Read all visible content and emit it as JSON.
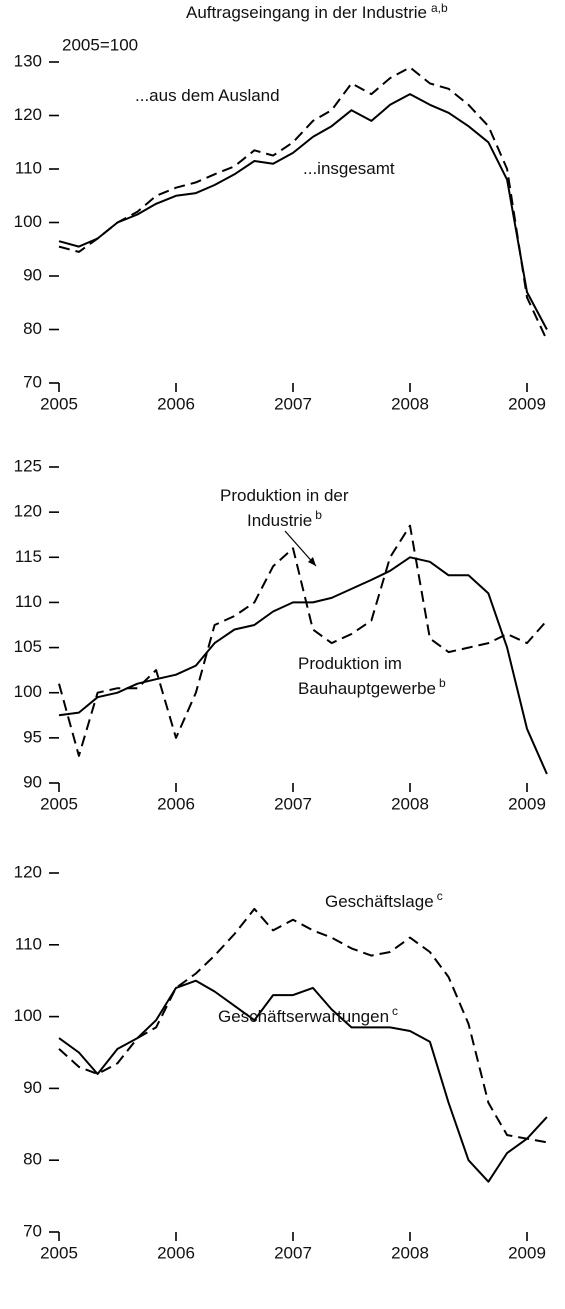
{
  "chart_data": [
    {
      "type": "line",
      "title": "Auftragseingang in der Industrie",
      "title_sup": "a,b",
      "subtitle": "2005=100",
      "x": [
        2005,
        2005.17,
        2005.33,
        2005.5,
        2005.67,
        2005.83,
        2006,
        2006.17,
        2006.33,
        2006.5,
        2006.67,
        2006.83,
        2007,
        2007.17,
        2007.33,
        2007.5,
        2007.67,
        2007.83,
        2008,
        2008.17,
        2008.33,
        2008.5,
        2008.67,
        2008.83,
        2009,
        2009.17
      ],
      "xlim": [
        2005,
        2009.3
      ],
      "xticks": [
        2005,
        2006,
        2007,
        2008,
        2009
      ],
      "ylim": [
        70,
        130
      ],
      "yticks": [
        70,
        80,
        90,
        100,
        110,
        120,
        130
      ],
      "series": [
        {
          "color": "#000000",
          "dash": false,
          "values": [
            96.5,
            95.5,
            97,
            100,
            101.5,
            103.5,
            105,
            105.5,
            107,
            109,
            111.5,
            111,
            113,
            116,
            118,
            121,
            119,
            122,
            124,
            122,
            120.5,
            118,
            115,
            108,
            87,
            80
          ]
        },
        {
          "color": "#000000",
          "dash": true,
          "values": [
            95.5,
            94.5,
            97,
            100,
            102,
            105,
            106.5,
            107.5,
            109,
            110.5,
            113.5,
            112.5,
            115,
            119,
            121,
            126,
            124,
            127,
            129,
            126,
            125,
            122,
            118,
            110,
            86,
            78
          ]
        }
      ],
      "annotations": [
        {
          "lines": [
            {
              "text": "...aus dem Ausland"
            }
          ]
        },
        {
          "lines": [
            {
              "text": "...insgesamt"
            }
          ]
        }
      ]
    },
    {
      "type": "line",
      "x": [
        2005,
        2005.17,
        2005.33,
        2005.5,
        2005.67,
        2005.83,
        2006,
        2006.17,
        2006.33,
        2006.5,
        2006.67,
        2006.83,
        2007,
        2007.17,
        2007.33,
        2007.5,
        2007.67,
        2007.83,
        2008,
        2008.17,
        2008.33,
        2008.5,
        2008.67,
        2008.83,
        2009,
        2009.17
      ],
      "xlim": [
        2005,
        2009.3
      ],
      "xticks": [
        2005,
        2006,
        2007,
        2008,
        2009
      ],
      "ylim": [
        90,
        125
      ],
      "yticks": [
        90,
        95,
        100,
        105,
        110,
        115,
        120,
        125
      ],
      "series": [
        {
          "color": "#000000",
          "dash": false,
          "values": [
            97.5,
            97.8,
            99.5,
            100,
            101,
            101.5,
            102,
            103,
            105.5,
            107,
            107.5,
            109,
            110,
            110,
            110.5,
            111.5,
            112.5,
            113.5,
            115,
            114.5,
            113,
            113,
            111,
            105,
            96,
            91
          ]
        },
        {
          "color": "#000000",
          "dash": true,
          "values": [
            101,
            93,
            100,
            100.5,
            100.5,
            102.5,
            95,
            100,
            107.5,
            108.5,
            110,
            114,
            116,
            107,
            105.5,
            106.5,
            108,
            115,
            118.5,
            106,
            104.5,
            105,
            105.5,
            106.5,
            105.5,
            108
          ]
        }
      ],
      "annotations": [
        {
          "lines": [
            {
              "text": "Produktion in der"
            },
            {
              "text": "Industrie",
              "sup": "b"
            }
          ]
        },
        {
          "lines": [
            {
              "text": "Produktion im"
            },
            {
              "text": "Bauhauptgewerbe",
              "sup": "b"
            }
          ]
        }
      ]
    },
    {
      "type": "line",
      "x": [
        2005,
        2005.17,
        2005.33,
        2005.5,
        2005.67,
        2005.83,
        2006,
        2006.17,
        2006.33,
        2006.5,
        2006.67,
        2006.83,
        2007,
        2007.17,
        2007.33,
        2007.5,
        2007.67,
        2007.83,
        2008,
        2008.17,
        2008.33,
        2008.5,
        2008.67,
        2008.83,
        2009,
        2009.17
      ],
      "xlim": [
        2005,
        2009.3
      ],
      "xticks": [
        2005,
        2006,
        2007,
        2008,
        2009
      ],
      "ylim": [
        70,
        120
      ],
      "yticks": [
        70,
        80,
        90,
        100,
        110,
        120
      ],
      "series": [
        {
          "color": "#000000",
          "dash": true,
          "values": [
            95.5,
            93,
            92,
            93.5,
            97,
            98.5,
            104,
            106,
            108.5,
            111.5,
            115,
            112,
            113.5,
            112,
            111,
            109.5,
            108.5,
            109,
            111,
            109,
            105.5,
            99,
            88,
            83.5,
            83,
            82.5
          ]
        },
        {
          "color": "#000000",
          "dash": false,
          "values": [
            97,
            95,
            92,
            95.5,
            97,
            99.5,
            104,
            105,
            103.5,
            101.5,
            99.5,
            103,
            103,
            104,
            101,
            98.5,
            98.5,
            98.5,
            98,
            96.5,
            88,
            80,
            77,
            81,
            83,
            86
          ]
        }
      ],
      "annotations": [
        {
          "lines": [
            {
              "text": "Geschäftslage",
              "sup": "c"
            }
          ]
        },
        {
          "lines": [
            {
              "text": "Geschäftserwartungen",
              "sup": "c"
            }
          ]
        }
      ]
    }
  ]
}
